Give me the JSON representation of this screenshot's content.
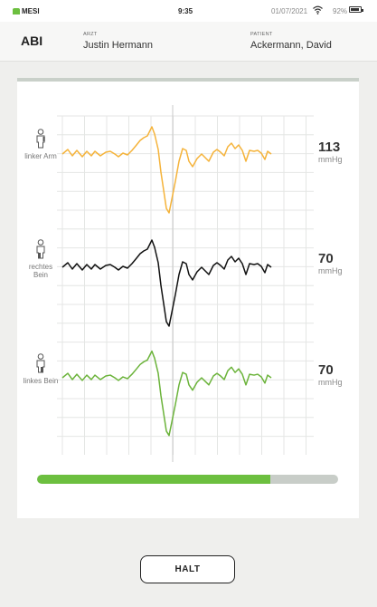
{
  "status": {
    "brand": "MESI",
    "time": "9:35",
    "date": "01/07/2021",
    "battery_text": "92%",
    "battery_level": 0.92
  },
  "header": {
    "title": "ABI",
    "doctor_caption": "ARZT",
    "doctor_name": "Justin Hermann",
    "patient_caption": "PATIENT",
    "patient_name": "Ackermann, David"
  },
  "channels": [
    {
      "limb": "linker Arm",
      "value": "113",
      "unit": "mmHg",
      "color": "#f5b33a"
    },
    {
      "limb": "rechtes Bein",
      "value": "70",
      "unit": "mmHg",
      "color": "#111111"
    },
    {
      "limb": "linkes Bein",
      "value": "70",
      "unit": "mmHg",
      "color": "#6bb33a"
    }
  ],
  "progress": {
    "fraction": 0.775,
    "color": "#6cbf3f"
  },
  "actions": {
    "halt_label": "HALT"
  }
}
